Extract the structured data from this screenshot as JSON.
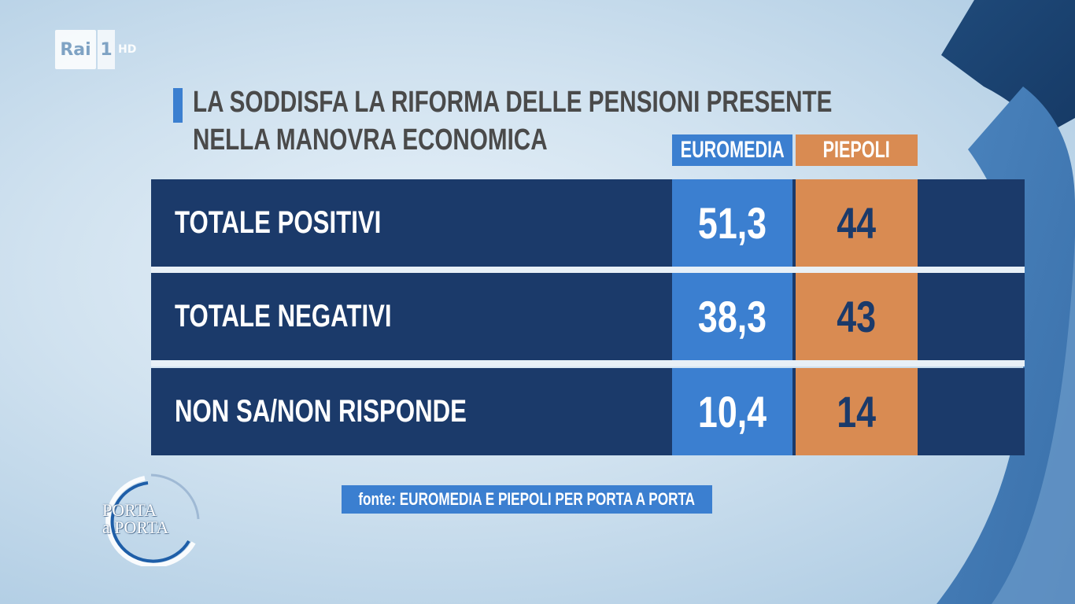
{
  "channel": {
    "name": "Rai",
    "number": "1",
    "quality": "HD"
  },
  "title_lines": [
    "LA SODDISFA LA RIFORMA DELLE PENSIONI PRESENTE",
    "NELLA MANOVRA ECONOMICA"
  ],
  "show": {
    "line1": "PORTA",
    "line2": "a PORTA"
  },
  "source": "fonte: EUROMEDIA E PIEPOLI PER PORTA A PORTA",
  "colors": {
    "euromedia": "#3b7fd0",
    "piepoli": "#d98b52",
    "row": "#1b3a6a"
  },
  "chart_data": {
    "type": "table",
    "title": "LA SODDISFA LA RIFORMA DELLE PENSIONI PRESENTE NELLA MANOVRA ECONOMICA",
    "columns": [
      "EUROMEDIA",
      "PIEPOLI"
    ],
    "rows": [
      {
        "label": "TOTALE POSITIVI",
        "values": [
          "51,3",
          "44"
        ]
      },
      {
        "label": "TOTALE NEGATIVI",
        "values": [
          "38,3",
          "43"
        ]
      },
      {
        "label": "NON SA/NON RISPONDE",
        "values": [
          "10,4",
          "14"
        ]
      }
    ],
    "series": [
      {
        "name": "EUROMEDIA",
        "values": [
          51.3,
          38.3,
          10.4
        ]
      },
      {
        "name": "PIEPOLI",
        "values": [
          44,
          43,
          14
        ]
      }
    ]
  }
}
